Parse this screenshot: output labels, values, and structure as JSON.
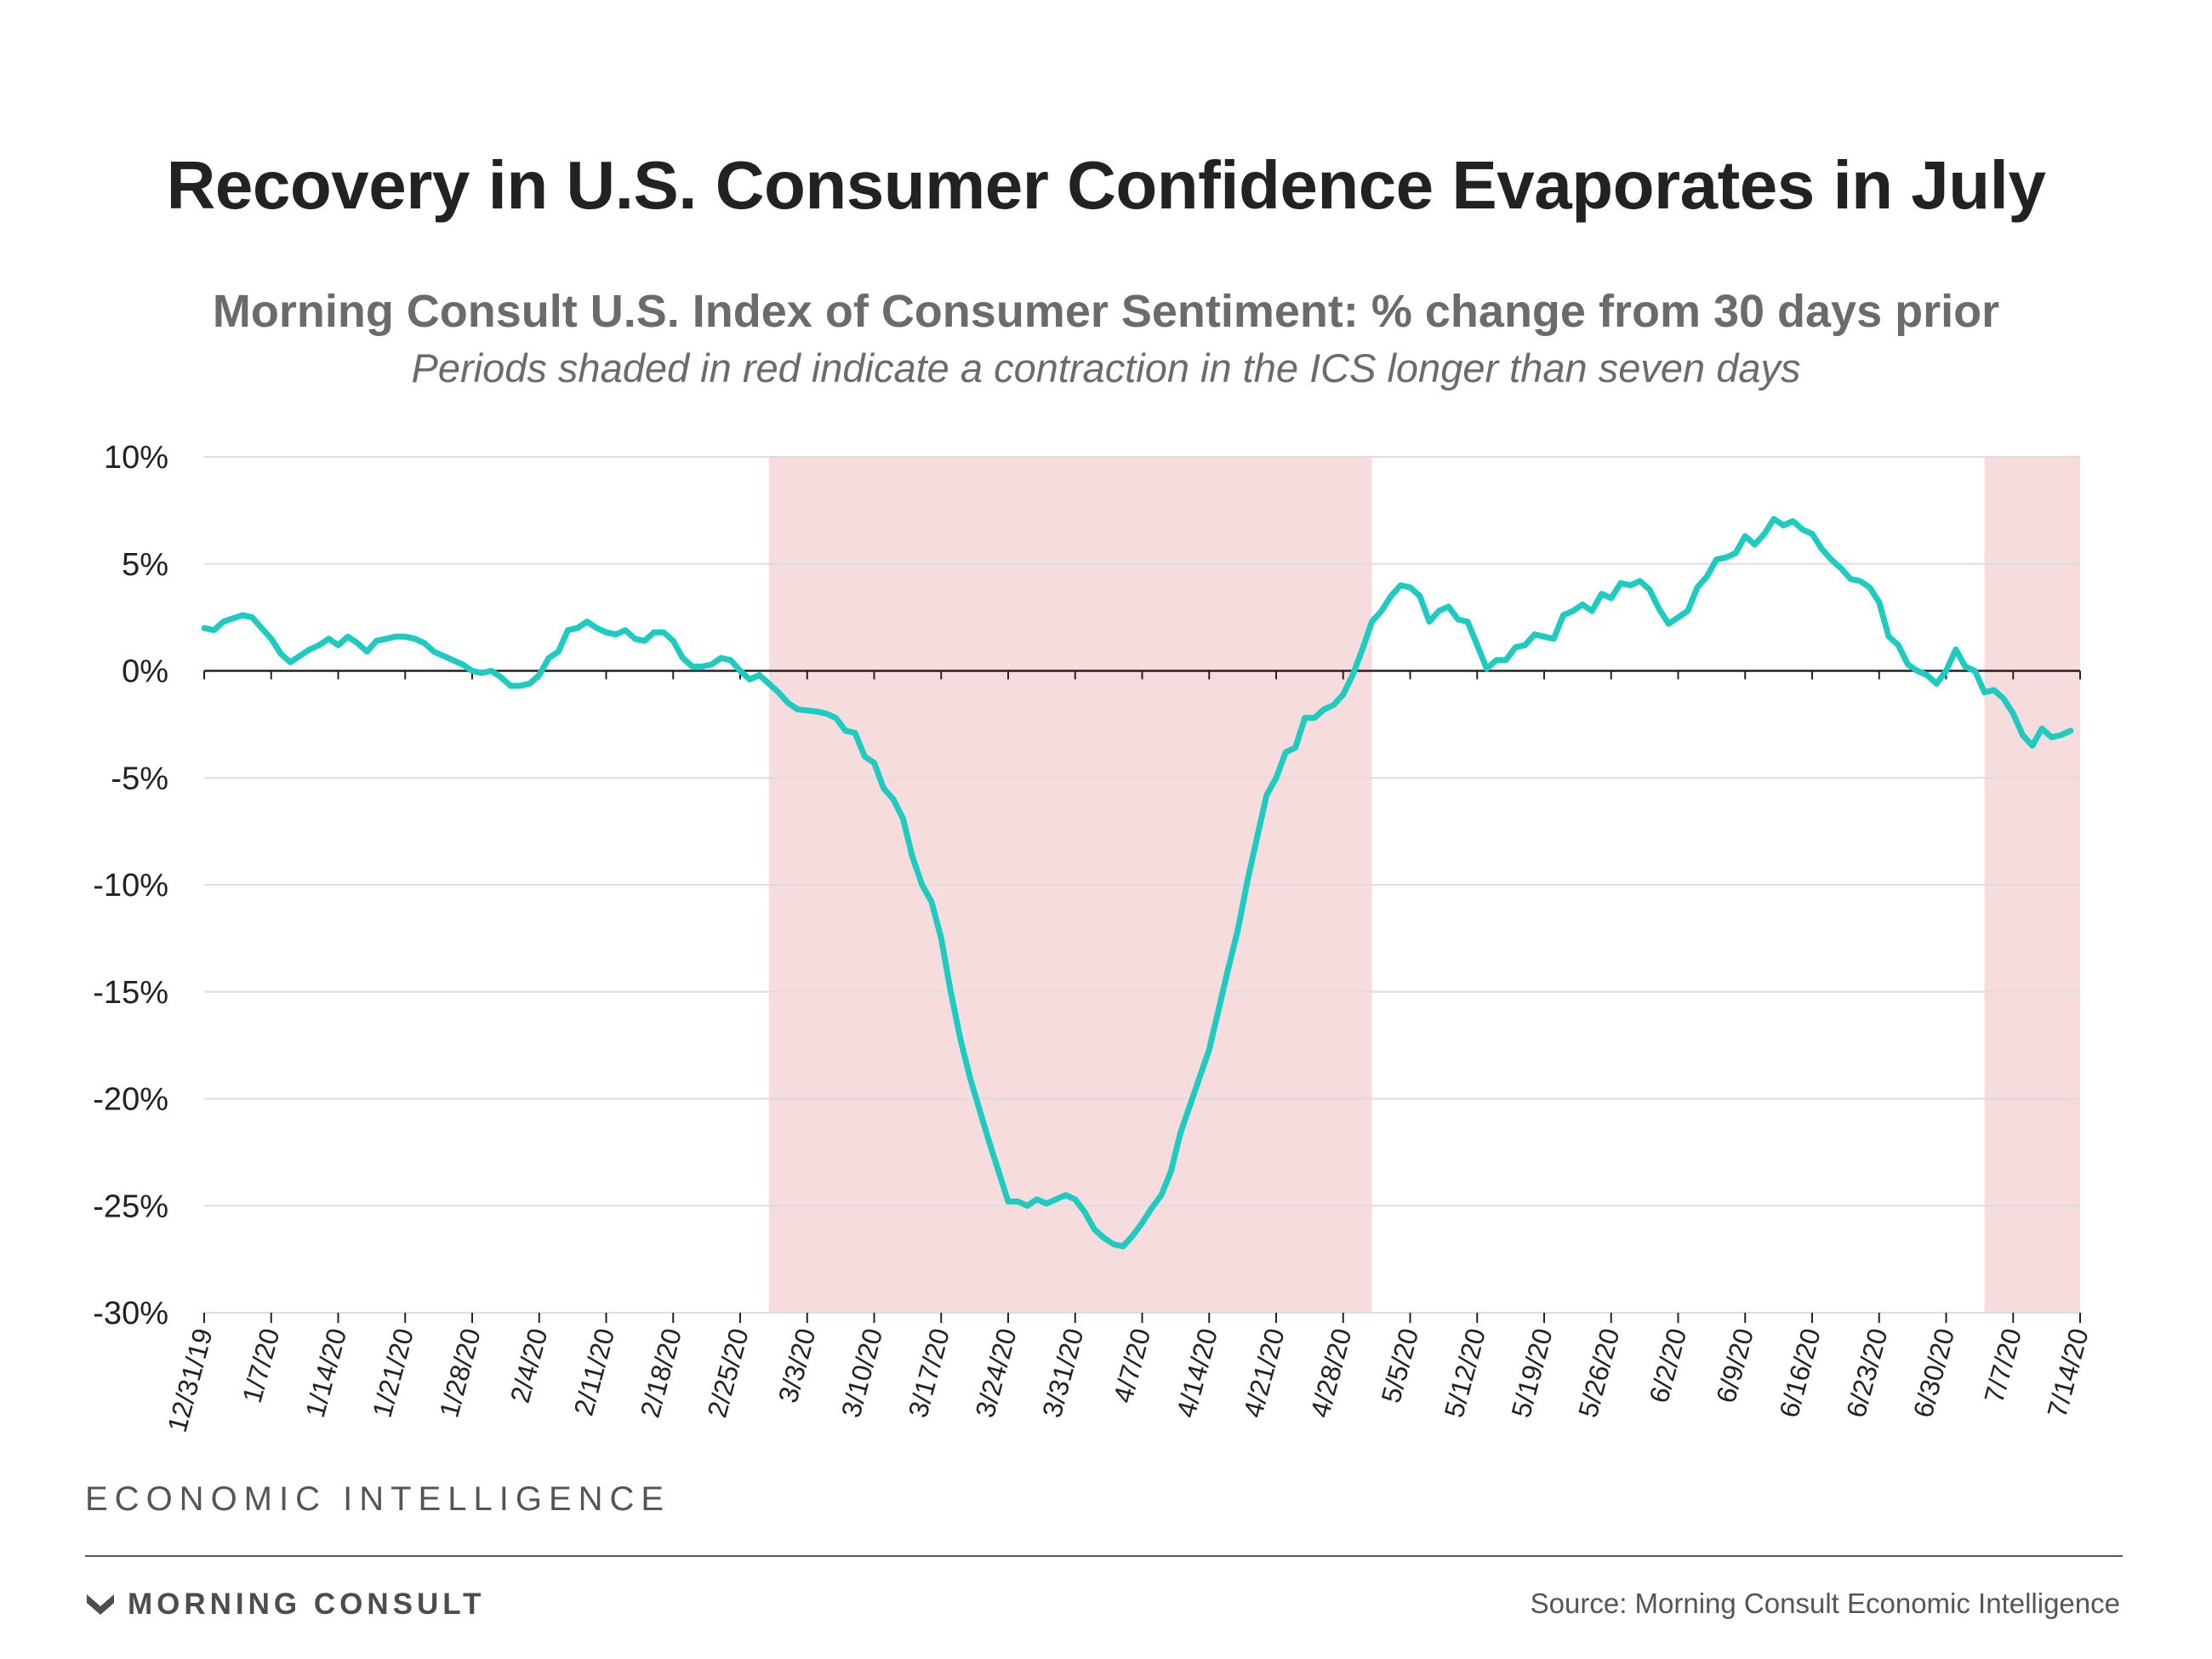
{
  "header": {
    "title": "Recovery in U.S. Consumer Confidence Evaporates in July",
    "subtitle": "Morning Consult U.S. Index of Consumer Sentiment: % change from 30 days prior",
    "note": "Periods shaded in red indicate a contraction in the ICS longer than seven days"
  },
  "footer": {
    "section": "ECONOMIC INTELLIGENCE",
    "brand": "MORNING CONSULT",
    "source": "Source: Morning Consult Economic Intelligence"
  },
  "colors": {
    "line": "#1ecbc1",
    "shade": "#f7dcdd",
    "grid": "#dddddd",
    "text": "#222222"
  },
  "chart_data": {
    "type": "line",
    "title": "Morning Consult U.S. Index of Consumer Sentiment: % change from 30 days prior",
    "xlabel": "",
    "ylabel": "",
    "ylim": [
      -30,
      10
    ],
    "yticks": [
      10,
      5,
      0,
      -5,
      -10,
      -15,
      -20,
      -25,
      -30
    ],
    "ytick_labels": [
      "10%",
      "5%",
      "0%",
      "-5%",
      "-10%",
      "-15%",
      "-20%",
      "-25%",
      "-30%"
    ],
    "xlim": [
      "2019-12-31",
      "2020-07-14"
    ],
    "xtick_labels": [
      "12/31/19",
      "1/7/20",
      "1/14/20",
      "1/21/20",
      "1/28/20",
      "2/4/20",
      "2/11/20",
      "2/18/20",
      "2/25/20",
      "3/3/20",
      "3/10/20",
      "3/17/20",
      "3/24/20",
      "3/31/20",
      "4/7/20",
      "4/14/20",
      "4/21/20",
      "4/28/20",
      "5/5/20",
      "5/12/20",
      "5/19/20",
      "5/26/20",
      "6/2/20",
      "6/9/20",
      "6/16/20",
      "6/23/20",
      "6/30/20",
      "7/7/20",
      "7/14/20"
    ],
    "grid": true,
    "shaded_periods": [
      {
        "start": "2020-02-28",
        "end": "2020-05-01"
      },
      {
        "start": "2020-07-04",
        "end": "2020-07-14"
      }
    ],
    "series": [
      {
        "points": [
          [
            "2019-12-31",
            2.0
          ],
          [
            "2020-01-01",
            1.9
          ],
          [
            "2020-01-02",
            2.3
          ],
          [
            "2020-01-04",
            2.6
          ],
          [
            "2020-01-05",
            2.5
          ],
          [
            "2020-01-06",
            2.0
          ],
          [
            "2020-01-07",
            1.5
          ],
          [
            "2020-01-08",
            0.8
          ],
          [
            "2020-01-09",
            0.4
          ],
          [
            "2020-01-10",
            0.7
          ],
          [
            "2020-01-11",
            1.0
          ],
          [
            "2020-01-12",
            1.2
          ],
          [
            "2020-01-13",
            1.5
          ],
          [
            "2020-01-14",
            1.2
          ],
          [
            "2020-01-15",
            1.6
          ],
          [
            "2020-01-16",
            1.3
          ],
          [
            "2020-01-17",
            0.9
          ],
          [
            "2020-01-18",
            1.4
          ],
          [
            "2020-01-20",
            1.6
          ],
          [
            "2020-01-21",
            1.6
          ],
          [
            "2020-01-22",
            1.5
          ],
          [
            "2020-01-23",
            1.3
          ],
          [
            "2020-01-24",
            0.9
          ],
          [
            "2020-01-25",
            0.7
          ],
          [
            "2020-01-26",
            0.5
          ],
          [
            "2020-01-27",
            0.3
          ],
          [
            "2020-01-28",
            0.0
          ],
          [
            "2020-01-29",
            -0.1
          ],
          [
            "2020-01-30",
            0.0
          ],
          [
            "2020-01-31",
            -0.3
          ],
          [
            "2020-02-01",
            -0.7
          ],
          [
            "2020-02-02",
            -0.7
          ],
          [
            "2020-02-03",
            -0.6
          ],
          [
            "2020-02-04",
            -0.2
          ],
          [
            "2020-02-05",
            0.6
          ],
          [
            "2020-02-06",
            0.9
          ],
          [
            "2020-02-07",
            1.9
          ],
          [
            "2020-02-08",
            2.0
          ],
          [
            "2020-02-09",
            2.3
          ],
          [
            "2020-02-10",
            2.0
          ],
          [
            "2020-02-11",
            1.8
          ],
          [
            "2020-02-12",
            1.7
          ],
          [
            "2020-02-13",
            1.9
          ],
          [
            "2020-02-14",
            1.5
          ],
          [
            "2020-02-15",
            1.4
          ],
          [
            "2020-02-16",
            1.8
          ],
          [
            "2020-02-17",
            1.8
          ],
          [
            "2020-02-18",
            1.4
          ],
          [
            "2020-02-19",
            0.6
          ],
          [
            "2020-02-20",
            0.2
          ],
          [
            "2020-02-21",
            0.2
          ],
          [
            "2020-02-22",
            0.3
          ],
          [
            "2020-02-23",
            0.6
          ],
          [
            "2020-02-24",
            0.5
          ],
          [
            "2020-02-25",
            0.0
          ],
          [
            "2020-02-26",
            -0.4
          ],
          [
            "2020-02-27",
            -0.2
          ],
          [
            "2020-02-28",
            -0.6
          ],
          [
            "2020-02-29",
            -1.0
          ],
          [
            "2020-03-01",
            -1.5
          ],
          [
            "2020-03-02",
            -1.8
          ],
          [
            "2020-03-04",
            -1.9
          ],
          [
            "2020-03-05",
            -2.0
          ],
          [
            "2020-03-06",
            -2.2
          ],
          [
            "2020-03-07",
            -2.8
          ],
          [
            "2020-03-08",
            -2.9
          ],
          [
            "2020-03-09",
            -4.0
          ],
          [
            "2020-03-10",
            -4.3
          ],
          [
            "2020-03-11",
            -5.5
          ],
          [
            "2020-03-12",
            -6.0
          ],
          [
            "2020-03-13",
            -6.9
          ],
          [
            "2020-03-14",
            -8.7
          ],
          [
            "2020-03-15",
            -10.0
          ],
          [
            "2020-03-16",
            -10.8
          ],
          [
            "2020-03-17",
            -12.5
          ],
          [
            "2020-03-18",
            -15.0
          ],
          [
            "2020-03-19",
            -17.2
          ],
          [
            "2020-03-20",
            -19.0
          ],
          [
            "2020-03-21",
            -20.5
          ],
          [
            "2020-03-22",
            -22.0
          ],
          [
            "2020-03-23",
            -23.4
          ],
          [
            "2020-03-24",
            -24.8
          ],
          [
            "2020-03-25",
            -24.8
          ],
          [
            "2020-03-26",
            -25.0
          ],
          [
            "2020-03-27",
            -24.7
          ],
          [
            "2020-03-28",
            -24.9
          ],
          [
            "2020-03-29",
            -24.7
          ],
          [
            "2020-03-30",
            -24.5
          ],
          [
            "2020-03-31",
            -24.7
          ],
          [
            "2020-04-01",
            -25.3
          ],
          [
            "2020-04-02",
            -26.1
          ],
          [
            "2020-04-03",
            -26.5
          ],
          [
            "2020-04-04",
            -26.8
          ],
          [
            "2020-04-05",
            -26.9
          ],
          [
            "2020-04-06",
            -26.4
          ],
          [
            "2020-04-07",
            -25.8
          ],
          [
            "2020-04-08",
            -25.1
          ],
          [
            "2020-04-09",
            -24.5
          ],
          [
            "2020-04-10",
            -23.4
          ],
          [
            "2020-04-11",
            -21.6
          ],
          [
            "2020-04-12",
            -20.3
          ],
          [
            "2020-04-13",
            -19.0
          ],
          [
            "2020-04-14",
            -17.7
          ],
          [
            "2020-04-15",
            -15.8
          ],
          [
            "2020-04-16",
            -13.9
          ],
          [
            "2020-04-17",
            -12.1
          ],
          [
            "2020-04-18",
            -9.8
          ],
          [
            "2020-04-19",
            -7.8
          ],
          [
            "2020-04-20",
            -5.8
          ],
          [
            "2020-04-21",
            -5.0
          ],
          [
            "2020-04-22",
            -3.8
          ],
          [
            "2020-04-23",
            -3.6
          ],
          [
            "2020-04-24",
            -2.2
          ],
          [
            "2020-04-25",
            -2.2
          ],
          [
            "2020-04-26",
            -1.8
          ],
          [
            "2020-04-27",
            -1.6
          ],
          [
            "2020-04-28",
            -1.1
          ],
          [
            "2020-04-29",
            -0.2
          ],
          [
            "2020-04-30",
            1.0
          ],
          [
            "2020-05-01",
            2.3
          ],
          [
            "2020-05-02",
            2.8
          ],
          [
            "2020-05-03",
            3.5
          ],
          [
            "2020-05-04",
            4.0
          ],
          [
            "2020-05-05",
            3.9
          ],
          [
            "2020-05-06",
            3.5
          ],
          [
            "2020-05-07",
            2.3
          ],
          [
            "2020-05-08",
            2.8
          ],
          [
            "2020-05-09",
            3.0
          ],
          [
            "2020-05-10",
            2.4
          ],
          [
            "2020-05-11",
            2.3
          ],
          [
            "2020-05-12",
            1.2
          ],
          [
            "2020-05-13",
            0.1
          ],
          [
            "2020-05-14",
            0.5
          ],
          [
            "2020-05-15",
            0.5
          ],
          [
            "2020-05-16",
            1.1
          ],
          [
            "2020-05-17",
            1.2
          ],
          [
            "2020-05-18",
            1.7
          ],
          [
            "2020-05-19",
            1.6
          ],
          [
            "2020-05-20",
            1.5
          ],
          [
            "2020-05-21",
            2.6
          ],
          [
            "2020-05-22",
            2.8
          ],
          [
            "2020-05-23",
            3.1
          ],
          [
            "2020-05-24",
            2.8
          ],
          [
            "2020-05-25",
            3.6
          ],
          [
            "2020-05-26",
            3.4
          ],
          [
            "2020-05-27",
            4.1
          ],
          [
            "2020-05-28",
            4.0
          ],
          [
            "2020-05-29",
            4.2
          ],
          [
            "2020-05-30",
            3.8
          ],
          [
            "2020-05-31",
            2.9
          ],
          [
            "2020-06-01",
            2.2
          ],
          [
            "2020-06-02",
            2.5
          ],
          [
            "2020-06-03",
            2.8
          ],
          [
            "2020-06-04",
            3.9
          ],
          [
            "2020-06-05",
            4.4
          ],
          [
            "2020-06-06",
            5.2
          ],
          [
            "2020-06-07",
            5.3
          ],
          [
            "2020-06-08",
            5.5
          ],
          [
            "2020-06-09",
            6.3
          ],
          [
            "2020-06-10",
            5.9
          ],
          [
            "2020-06-11",
            6.4
          ],
          [
            "2020-06-12",
            7.1
          ],
          [
            "2020-06-13",
            6.8
          ],
          [
            "2020-06-14",
            7.0
          ],
          [
            "2020-06-15",
            6.6
          ],
          [
            "2020-06-16",
            6.4
          ],
          [
            "2020-06-17",
            5.7
          ],
          [
            "2020-06-18",
            5.2
          ],
          [
            "2020-06-19",
            4.8
          ],
          [
            "2020-06-20",
            4.3
          ],
          [
            "2020-06-21",
            4.2
          ],
          [
            "2020-06-22",
            3.9
          ],
          [
            "2020-06-23",
            3.2
          ],
          [
            "2020-06-24",
            1.6
          ],
          [
            "2020-06-25",
            1.2
          ],
          [
            "2020-06-26",
            0.3
          ],
          [
            "2020-06-27",
            0.0
          ],
          [
            "2020-06-28",
            -0.2
          ],
          [
            "2020-06-29",
            -0.6
          ],
          [
            "2020-06-30",
            0.0
          ],
          [
            "2020-07-01",
            1.0
          ],
          [
            "2020-07-02",
            0.2
          ],
          [
            "2020-07-03",
            0.0
          ],
          [
            "2020-07-04",
            -1.0
          ],
          [
            "2020-07-05",
            -0.9
          ],
          [
            "2020-07-06",
            -1.3
          ],
          [
            "2020-07-07",
            -2.0
          ],
          [
            "2020-07-08",
            -3.0
          ],
          [
            "2020-07-09",
            -3.5
          ],
          [
            "2020-07-10",
            -2.7
          ],
          [
            "2020-07-11",
            -3.1
          ],
          [
            "2020-07-12",
            -3.0
          ],
          [
            "2020-07-13",
            -2.8
          ]
        ]
      }
    ]
  }
}
